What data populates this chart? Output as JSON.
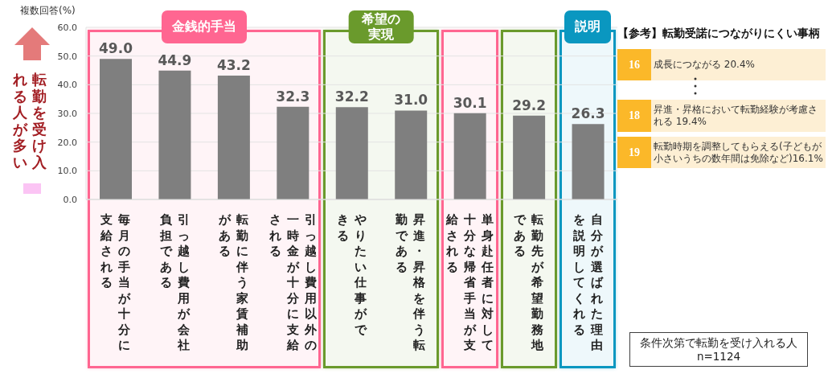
{
  "chart_data": [
    {
      "type": "bar",
      "ylabel": "複数回答(%)",
      "categories": [
        "毎月の手当が十分に支給される",
        "引っ越し費用が会社負担である",
        "転勤に伴う家賃補助がある",
        "引っ越し費用以外の一時金が十分に支給される",
        "やりたい仕事ができる",
        "昇進・昇格を伴う転勤である",
        "単身赴任者に対して十分な帰省手当が支給される",
        "転勤先が希望勤務地である",
        "自分が選ばれた理由を説明してくれる"
      ],
      "values": [
        49.0,
        44.9,
        43.2,
        32.3,
        32.2,
        31.0,
        30.1,
        29.2,
        26.3
      ],
      "value_labels": [
        "49.0",
        "44.9",
        "43.2",
        "32.3",
        "32.2",
        "31.0",
        "30.1",
        "29.2",
        "26.3"
      ],
      "color": "#7f7f7f",
      "ylim": [
        0,
        60
      ],
      "yticks": [
        {
          "value": 0,
          "label": "0.0"
        },
        {
          "value": 10,
          "label": "10.0"
        },
        {
          "value": 20,
          "label": "20.0"
        },
        {
          "value": 30,
          "label": "30.0"
        },
        {
          "value": 40,
          "label": "40.0"
        },
        {
          "value": 50,
          "label": "50.0"
        },
        {
          "value": 60,
          "label": "60.0"
        }
      ],
      "grid": "y",
      "bands": [
        {
          "axis": "x",
          "from": "毎月の手当が十分に支給される",
          "to": "引っ越し費用以外の一時金が十分に支給される",
          "label": "金銭的手当",
          "color": "#ff6691"
        },
        {
          "axis": "x",
          "from": "やりたい仕事ができる",
          "to": "昇進・昇格を伴う転勤である",
          "label": "希望の実現",
          "color": "#6a9a2c"
        },
        {
          "axis": "x",
          "from": "単身赴任者に対して十分な帰省手当が支給される",
          "to": "単身赴任者に対して十分な帰省手当が支給される",
          "color": "#ff6691"
        },
        {
          "axis": "x",
          "from": "転勤先が希望勤務地である",
          "to": "転勤先が希望勤務地である",
          "color": "#6a9a2c"
        },
        {
          "axis": "x",
          "from": "自分が選ばれた理由を説明してくれる",
          "to": "自分が選ばれた理由を説明してくれる",
          "label": "説明",
          "color": "#0a97c0"
        }
      ],
      "annotations": [
        "転勤を受け入れる人が多い",
        "条件次第で転勤を受け入れる人",
        "n=1124"
      ]
    },
    {
      "type": "other",
      "title": "【参考】転勤受諾につながりにくい事柄",
      "annotations": [
        "16",
        "成長につながる 20.4%",
        "18",
        "昇進・昇格において転勤経験が考慮される 19.4%",
        "19",
        "転勤時期を調整してもらえる(子どもが小さいうちの数年間は免除など)16.1%"
      ]
    }
  ]
}
